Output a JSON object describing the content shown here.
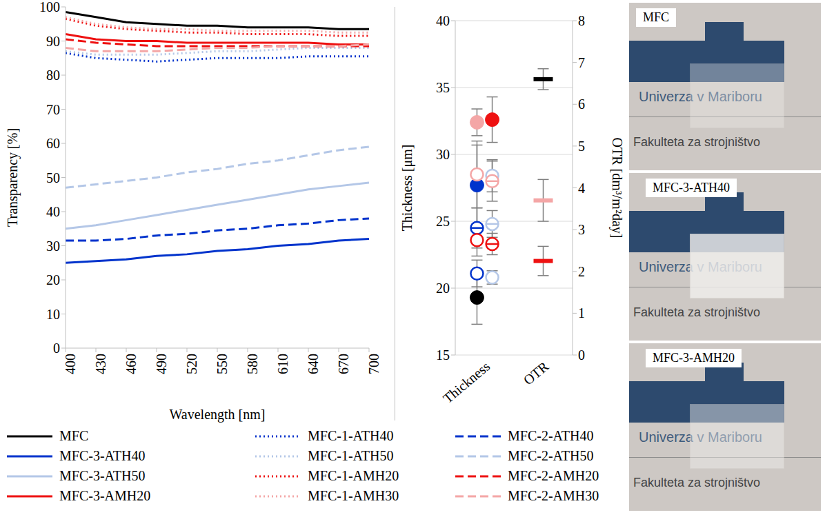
{
  "chart_data": [
    {
      "type": "line",
      "xlabel": "Wavelength [nm]",
      "ylabel": "Transparency [%]",
      "x": [
        400,
        430,
        460,
        490,
        520,
        550,
        580,
        610,
        640,
        670,
        700
      ],
      "xlim": [
        400,
        700
      ],
      "xticks": [
        400,
        430,
        460,
        490,
        520,
        550,
        580,
        610,
        640,
        670,
        700
      ],
      "ylim": [
        0,
        100
      ],
      "yticks": [
        0,
        10,
        20,
        30,
        40,
        50,
        60,
        70,
        80,
        90,
        100
      ],
      "grid": false,
      "legend": "bottom",
      "series": [
        {
          "name": "MFC",
          "color": "#000000",
          "line_style": "solid",
          "values": [
            98.5,
            97,
            95.5,
            95,
            94.5,
            94.5,
            94,
            94,
            94,
            93.5,
            93.5
          ]
        },
        {
          "name": "MFC-1-ATH40",
          "color": "#0033cc",
          "line_style": "dotted",
          "values": [
            86.5,
            85,
            84.5,
            84,
            84.5,
            85,
            85,
            85,
            85.5,
            85.5,
            85.5
          ]
        },
        {
          "name": "MFC-2-ATH40",
          "color": "#0033cc",
          "line_style": "dashed",
          "values": [
            31.5,
            31.5,
            32,
            33,
            33.5,
            34.5,
            35,
            36,
            36.5,
            37.5,
            38
          ]
        },
        {
          "name": "MFC-3-ATH40",
          "color": "#0033cc",
          "line_style": "solid",
          "values": [
            25,
            25.5,
            26,
            27,
            27.5,
            28.5,
            29,
            30,
            30.5,
            31.5,
            32
          ]
        },
        {
          "name": "MFC-1-ATH50",
          "color": "#b4c7e7",
          "line_style": "dotted",
          "values": [
            87,
            86,
            86,
            86,
            86.5,
            87,
            87,
            87.5,
            88,
            88,
            88
          ]
        },
        {
          "name": "MFC-2-ATH50",
          "color": "#b4c7e7",
          "line_style": "dashed",
          "values": [
            47,
            48,
            49,
            50,
            51.5,
            52.5,
            54,
            55,
            56.5,
            58,
            59
          ]
        },
        {
          "name": "MFC-3-ATH50",
          "color": "#b4c7e7",
          "line_style": "solid",
          "values": [
            35,
            36,
            37.5,
            39,
            40.5,
            42,
            43.5,
            45,
            46.5,
            47.5,
            48.5
          ]
        },
        {
          "name": "MFC-1-AMH20",
          "color": "#ee1111",
          "line_style": "dotted",
          "values": [
            96.5,
            94.5,
            93.5,
            93,
            92.5,
            92.5,
            92,
            92,
            92,
            91.5,
            91.5
          ]
        },
        {
          "name": "MFC-2-AMH20",
          "color": "#ee1111",
          "line_style": "dashed",
          "values": [
            90.5,
            89.5,
            89,
            88.5,
            88.5,
            88.5,
            88.5,
            88.5,
            88.5,
            88.5,
            88.5
          ]
        },
        {
          "name": "MFC-3-AMH20",
          "color": "#ee1111",
          "line_style": "solid",
          "values": [
            92,
            90.5,
            90,
            90,
            89.5,
            89.5,
            89.5,
            89.5,
            89.5,
            89,
            89
          ]
        },
        {
          "name": "MFC-1-AMH30",
          "color": "#f4a6a6",
          "line_style": "dotted",
          "values": [
            97,
            95,
            94,
            93.5,
            93.5,
            93,
            93,
            93,
            93,
            92.5,
            92.5
          ]
        },
        {
          "name": "MFC-2-AMH30",
          "color": "#f4a6a6",
          "line_style": "dashed",
          "values": [
            88,
            87,
            87,
            87,
            87.5,
            88,
            88,
            88.5,
            88.5,
            88.5,
            89
          ]
        }
      ]
    },
    {
      "type": "scatter",
      "categories": [
        "Thickness",
        "OTR"
      ],
      "ylabel": "Thickness [μm]",
      "y2label": "OTR [dm³/m²day]",
      "ylim": [
        15,
        40
      ],
      "yticks": [
        15,
        20,
        25,
        30,
        35,
        40
      ],
      "y2lim": [
        0,
        8
      ],
      "y2ticks": [
        0,
        1,
        2,
        3,
        4,
        5,
        6,
        7,
        8
      ],
      "grid": true,
      "series": [
        {
          "color": "#000000",
          "marker": "circle",
          "values": [
            19.3,
            null
          ],
          "errors": [
            2.0,
            null
          ]
        },
        {
          "color": "#0033cc",
          "marker": "circle",
          "values": [
            27.7,
            null
          ],
          "errors": [
            3.0,
            null
          ]
        },
        {
          "color": "#0033cc",
          "marker": "circle-open-line",
          "values": [
            24.5,
            null
          ],
          "errors": [
            1.5,
            null
          ]
        },
        {
          "color": "#0033cc",
          "marker": "circle-open",
          "values": [
            21.1,
            null
          ],
          "errors": [
            1.0,
            null
          ]
        },
        {
          "color": "#b4c7e7",
          "marker": "circle-open",
          "values": [
            28.4,
            null
          ],
          "errors": [
            1.2,
            null
          ]
        },
        {
          "color": "#b4c7e7",
          "marker": "circle-open-line",
          "values": [
            24.8,
            null
          ],
          "errors": [
            1.0,
            null
          ]
        },
        {
          "color": "#b4c7e7",
          "marker": "circle-open",
          "values": [
            20.8,
            null
          ],
          "errors": [
            0.5,
            null
          ]
        },
        {
          "color": "#ee1111",
          "marker": "circle",
          "values": [
            32.6,
            null
          ],
          "errors": [
            1.7,
            null
          ]
        },
        {
          "color": "#ee1111",
          "marker": "circle-open",
          "values": [
            23.6,
            null
          ],
          "errors": [
            1.2,
            null
          ]
        },
        {
          "color": "#ee1111",
          "marker": "circle-open-line",
          "values": [
            23.3,
            null
          ],
          "errors": [
            0.8,
            null
          ]
        },
        {
          "color": "#f4a6a6",
          "marker": "circle",
          "values": [
            32.4,
            null
          ],
          "errors": [
            1.0,
            null
          ]
        },
        {
          "color": "#f4a6a6",
          "marker": "circle-open",
          "values": [
            28.5,
            null
          ],
          "errors": [
            2.5,
            null
          ]
        },
        {
          "color": "#f4a6a6",
          "marker": "circle-open-line",
          "values": [
            28.0,
            null
          ],
          "errors": [
            1.5,
            null
          ]
        },
        {
          "color": "#000000",
          "marker": "dash",
          "axis": "y2",
          "values": [
            null,
            6.6
          ],
          "errors": [
            null,
            0.25
          ]
        },
        {
          "color": "#f4a6a6",
          "marker": "dash",
          "axis": "y2",
          "values": [
            null,
            3.7
          ],
          "errors": [
            null,
            0.5
          ]
        },
        {
          "color": "#ee1111",
          "marker": "dash",
          "axis": "y2",
          "values": [
            null,
            2.25
          ],
          "errors": [
            null,
            0.35
          ]
        }
      ]
    }
  ],
  "photos": [
    {
      "label": "MFC",
      "lines": [
        "Univerza v Mariboru",
        "Fakulteta za strojništvo"
      ]
    },
    {
      "label": "MFC-3-ATH40",
      "lines": [
        "Univerza v Mariboru",
        "Fakulteta za strojništvo"
      ]
    },
    {
      "label": "MFC-3-AMH20",
      "lines": [
        "Univerza v Mariboru",
        "Fakulteta za strojništvo"
      ]
    }
  ]
}
